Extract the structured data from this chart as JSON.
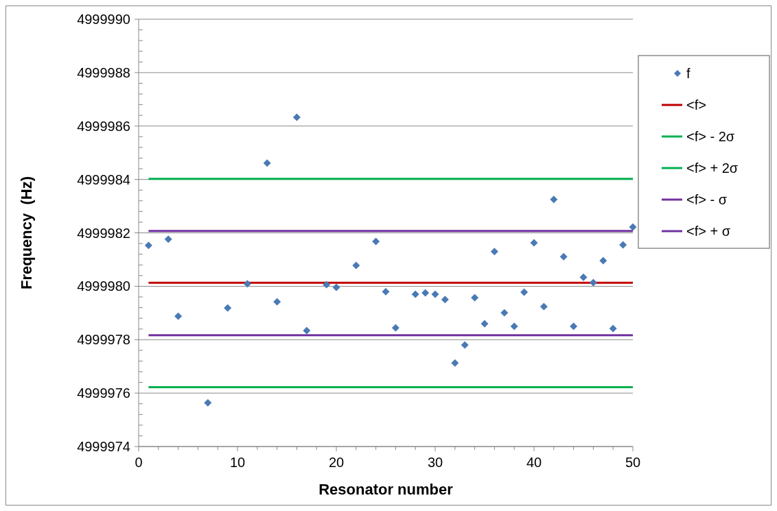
{
  "chart_data": {
    "type": "scatter",
    "xlabel": "Resonator number",
    "ylabel": "Frequency  (Hz)",
    "xlim": [
      0,
      50
    ],
    "ylim": [
      4999974,
      4999990
    ],
    "xticks": [
      0,
      {
        "value": 2,
        "label": null
      },
      {
        "value": 4,
        "label": null
      },
      {
        "value": 6,
        "label": null
      },
      {
        "value": 8,
        "label": null
      },
      10,
      {
        "value": 12,
        "label": null
      },
      {
        "value": 14,
        "label": null
      },
      {
        "value": 16,
        "label": null
      },
      {
        "value": 18,
        "label": null
      },
      20,
      {
        "value": 22,
        "label": null
      },
      {
        "value": 24,
        "label": null
      },
      {
        "value": 26,
        "label": null
      },
      {
        "value": 28,
        "label": null
      },
      30,
      {
        "value": 32,
        "label": null
      },
      {
        "value": 34,
        "label": null
      },
      {
        "value": 36,
        "label": null
      },
      {
        "value": 38,
        "label": null
      },
      40,
      {
        "value": 42,
        "label": null
      },
      {
        "value": 44,
        "label": null
      },
      {
        "value": 46,
        "label": null
      },
      {
        "value": 48,
        "label": null
      },
      50
    ],
    "yticks": [
      4999974,
      4999976,
      4999978,
      4999980,
      4999982,
      4999984,
      4999986,
      4999988,
      4999990
    ],
    "grid": "y",
    "legend": "right",
    "marker": "diamond",
    "series": [
      {
        "name": "f",
        "color": "#4a7ab5",
        "x": [
          1,
          3,
          4,
          7,
          9,
          11,
          13,
          14,
          16,
          17,
          19,
          20,
          22,
          24,
          25,
          26,
          28,
          29,
          30,
          31,
          32,
          33,
          34,
          35,
          36,
          37,
          38,
          39,
          40,
          41,
          42,
          43,
          44,
          45,
          46,
          47,
          48,
          49,
          50
        ],
        "values": [
          4999981.53,
          4999981.76,
          4999978.88,
          4999975.64,
          4999979.19,
          4999980.09,
          4999984.61,
          4999979.42,
          4999986.33,
          4999978.34,
          4999980.06,
          4999979.96,
          4999980.78,
          4999981.68,
          4999979.8,
          4999978.44,
          4999979.7,
          4999979.75,
          4999979.7,
          4999979.5,
          4999977.13,
          4999977.8,
          4999979.57,
          4999978.6,
          4999981.3,
          4999979.01,
          4999978.5,
          4999979.78,
          4999981.63,
          4999979.24,
          4999983.25,
          4999981.11,
          4999978.5,
          4999980.34,
          4999980.14,
          4999980.96,
          4999978.42,
          4999981.55,
          4999982.22
        ]
      },
      {
        "name": "<f>",
        "type": "line",
        "marker": "none",
        "color": "#c00000",
        "x": [
          1,
          50
        ],
        "values": [
          4999980.13,
          4999980.13
        ]
      },
      {
        "name": "<f> - 2σ",
        "type": "line",
        "marker": "none",
        "color": "#00b050",
        "x": [
          1,
          50
        ],
        "values": [
          4999984.02,
          4999984.02
        ]
      },
      {
        "name": "<f> + 2σ",
        "type": "line",
        "marker": "none",
        "color": "#00b050",
        "x": [
          1,
          50
        ],
        "values": [
          4999976.22,
          4999976.22
        ]
      },
      {
        "name": "<f> - σ",
        "type": "line",
        "marker": "none",
        "color": "#7030a0",
        "x": [
          1,
          50
        ],
        "values": [
          4999982.07,
          4999982.07
        ]
      },
      {
        "name": "<f> + σ",
        "type": "line",
        "marker": "none",
        "color": "#7030a0",
        "x": [
          1,
          50
        ],
        "values": [
          4999978.17,
          4999978.17
        ]
      }
    ]
  }
}
